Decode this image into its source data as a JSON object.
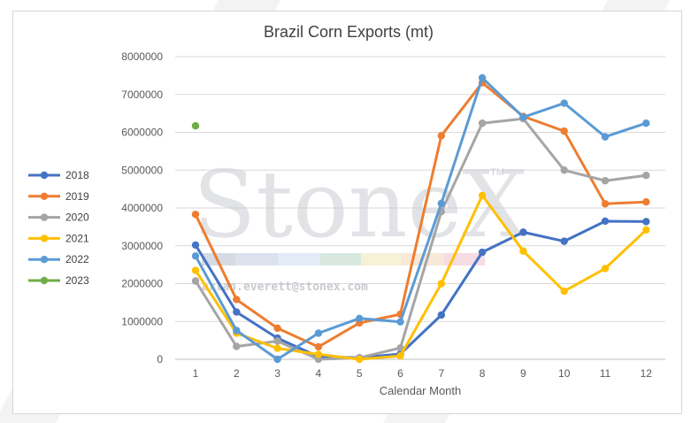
{
  "chart_data": {
    "type": "line",
    "title": "Brazil Corn Exports (mt)",
    "xlabel": "Calendar Month",
    "ylabel": "",
    "categories": [
      1,
      2,
      3,
      4,
      5,
      6,
      7,
      8,
      9,
      10,
      11,
      12
    ],
    "ylim": [
      0,
      8000000
    ],
    "yticks": [
      0,
      1000000,
      2000000,
      3000000,
      4000000,
      5000000,
      6000000,
      7000000,
      8000000
    ],
    "grid": true,
    "legend_position": "left",
    "series": [
      {
        "name": "2018",
        "color": "#4472c4",
        "values": [
          3020000,
          1250000,
          560000,
          70000,
          40000,
          140000,
          1170000,
          2830000,
          3360000,
          3120000,
          3650000,
          3640000
        ]
      },
      {
        "name": "2019",
        "color": "#ed7d31",
        "values": [
          3830000,
          1580000,
          820000,
          330000,
          960000,
          1190000,
          5910000,
          7310000,
          6420000,
          6030000,
          4110000,
          4160000
        ]
      },
      {
        "name": "2020",
        "color": "#a5a5a5",
        "values": [
          2070000,
          340000,
          480000,
          0,
          40000,
          300000,
          3900000,
          6240000,
          6360000,
          5000000,
          4720000,
          4860000
        ]
      },
      {
        "name": "2021",
        "color": "#ffc000",
        "values": [
          2350000,
          690000,
          290000,
          130000,
          0,
          90000,
          2000000,
          4330000,
          2860000,
          1800000,
          2400000,
          3420000
        ]
      },
      {
        "name": "2022",
        "color": "#5b9bd5",
        "values": [
          2730000,
          760000,
          0,
          690000,
          1080000,
          990000,
          4120000,
          7440000,
          6400000,
          6770000,
          5880000,
          6240000
        ]
      },
      {
        "name": "2023",
        "color": "#70ad47",
        "values": [
          6170000,
          null,
          null,
          null,
          null,
          null,
          null,
          null,
          null,
          null,
          null,
          null
        ]
      }
    ]
  },
  "watermark": {
    "brand": "StoneX",
    "tm": "TM",
    "email": "arlan.everett@stonex.com"
  }
}
